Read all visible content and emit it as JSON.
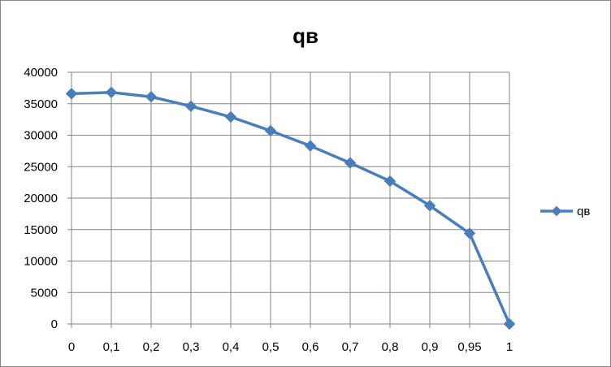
{
  "chart_data": {
    "type": "line",
    "title": "qв",
    "xlabel": "",
    "ylabel": "",
    "categories": [
      "0",
      "0,1",
      "0,2",
      "0,3",
      "0,4",
      "0,5",
      "0,6",
      "0,7",
      "0,8",
      "0,9",
      "0,95",
      "1"
    ],
    "series": [
      {
        "name": "qв",
        "color": "#4a7ebb",
        "marker": "diamond",
        "values": [
          36600,
          36800,
          36100,
          34600,
          32900,
          30700,
          28300,
          25600,
          22700,
          18800,
          14400,
          0
        ]
      }
    ],
    "ylim": [
      0,
      40000
    ],
    "yticks": [
      "0",
      "5000",
      "10000",
      "15000",
      "20000",
      "25000",
      "30000",
      "35000",
      "40000"
    ],
    "grid": "on",
    "legend_position": "right"
  }
}
